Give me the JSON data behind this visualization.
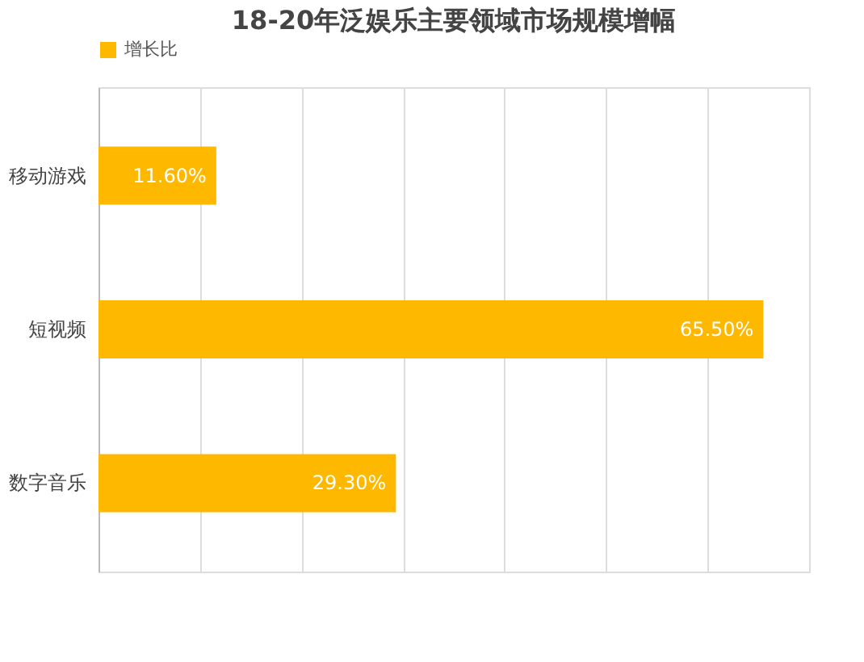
{
  "chart_data": {
    "type": "bar",
    "orientation": "horizontal",
    "title": "18-20年泛娱乐主要领域市场规模增幅",
    "categories": [
      "移动游戏",
      "短视频",
      "数字音乐"
    ],
    "series": [
      {
        "name": "增长比",
        "color": "#ffb800",
        "values": [
          11.6,
          65.5,
          29.3
        ],
        "value_labels": [
          "11.60%",
          "65.50%",
          "29.30%"
        ]
      }
    ],
    "xlim": [
      0,
      70
    ],
    "xticks": [
      {
        "value": 0,
        "label": null
      },
      {
        "value": 10,
        "label": null
      },
      {
        "value": 20,
        "label": null
      },
      {
        "value": 30,
        "label": null
      },
      {
        "value": 40,
        "label": null
      },
      {
        "value": 50,
        "label": null
      },
      {
        "value": 60,
        "label": null
      },
      {
        "value": 70,
        "label": null
      }
    ],
    "tick_labels": "y",
    "grid": "x",
    "legend": "top"
  }
}
